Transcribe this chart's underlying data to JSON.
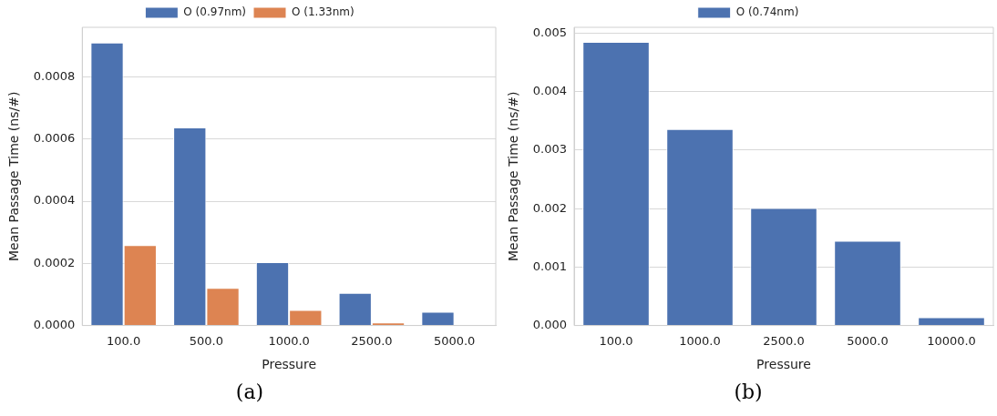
{
  "chart_data": [
    {
      "type": "bar",
      "categories": [
        "100.0",
        "500.0",
        "1000.0",
        "2500.0",
        "5000.0"
      ],
      "xlabel": "Pressure",
      "ylabel": "Mean Passage Time (ns/#)",
      "series": [
        {
          "name": "O (0.97nm)",
          "color": "#4c72b0",
          "values": [
            0.000911,
            0.000638,
            0.000204,
            0.000105,
            4.4e-05
          ]
        },
        {
          "name": "O (1.33nm)",
          "color": "#dd8452",
          "values": [
            0.000259,
            0.000121,
            5e-05,
            1e-05,
            0
          ]
        }
      ],
      "ylim": [
        0,
        0.00096
      ],
      "yticks": [
        {
          "value": 0,
          "label": "0.0000"
        },
        {
          "value": 0.0002,
          "label": "0.0002"
        },
        {
          "value": 0.0004,
          "label": "0.0004"
        },
        {
          "value": 0.0006,
          "label": "0.0006"
        },
        {
          "value": 0.0008,
          "label": "0.0008"
        }
      ],
      "grid": "y",
      "legend": "top",
      "annotations": [
        "(a)"
      ]
    },
    {
      "type": "bar",
      "categories": [
        "100.0",
        "1000.0",
        "2500.0",
        "5000.0",
        "10000.0"
      ],
      "xlabel": "Pressure",
      "ylabel": "Mean Passage Time (ns/#)",
      "series": [
        {
          "name": "O (0.74nm)",
          "color": "#4c72b0",
          "values": [
            0.00485,
            0.00336,
            0.00201,
            0.00145,
            0.00014
          ]
        }
      ],
      "ylim": [
        0,
        0.0051
      ],
      "yticks": [
        {
          "value": 0,
          "label": "0.000"
        },
        {
          "value": 0.001,
          "label": "0.001"
        },
        {
          "value": 0.002,
          "label": "0.002"
        },
        {
          "value": 0.003,
          "label": "0.003"
        },
        {
          "value": 0.004,
          "label": "0.004"
        },
        {
          "value": 0.005,
          "label": "0.005"
        }
      ],
      "grid": "y",
      "legend": "top",
      "annotations": [
        "(b)"
      ]
    }
  ]
}
